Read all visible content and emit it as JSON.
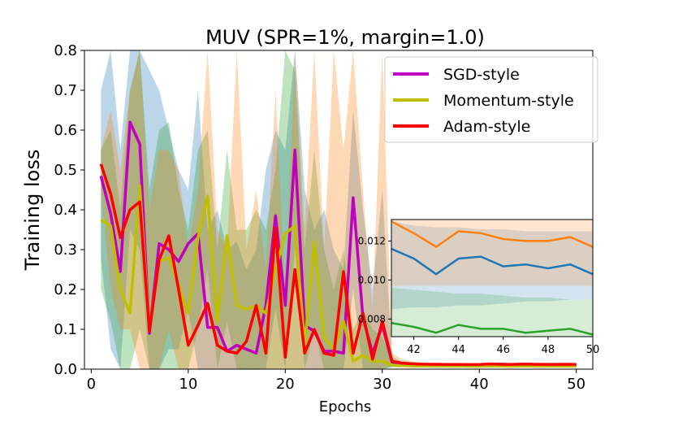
{
  "chart_data": {
    "type": "line",
    "title": "MUV (SPR=1%, margin=1.0)",
    "xlabel": "Epochs",
    "ylabel": "Training loss",
    "xlim": [
      -0.7,
      51.7
    ],
    "ylim": [
      0.0,
      0.8
    ],
    "xticks": [
      0,
      10,
      20,
      30,
      40,
      50
    ],
    "yticks": [
      0.0,
      0.1,
      0.2,
      0.3,
      0.4,
      0.5,
      0.6,
      0.7,
      0.8
    ],
    "legend_position": "top-right",
    "x": [
      1,
      2,
      3,
      4,
      5,
      6,
      7,
      8,
      9,
      10,
      11,
      12,
      13,
      14,
      15,
      16,
      17,
      18,
      19,
      20,
      21,
      22,
      23,
      24,
      25,
      26,
      27,
      28,
      29,
      30,
      31,
      32,
      33,
      34,
      35,
      36,
      37,
      38,
      39,
      40,
      41,
      42,
      43,
      44,
      45,
      46,
      47,
      48,
      49,
      50
    ],
    "series": [
      {
        "name": "SGD-style",
        "color": "#bf00bf",
        "band_color": "#1f77b4",
        "values": [
          0.485,
          0.39,
          0.245,
          0.62,
          0.565,
          0.09,
          0.315,
          0.3,
          0.27,
          0.315,
          0.34,
          0.105,
          0.105,
          0.045,
          0.06,
          0.05,
          0.04,
          0.16,
          0.385,
          0.16,
          0.55,
          0.11,
          0.095,
          0.045,
          0.045,
          0.04,
          0.43,
          0.13,
          0.04,
          0.11,
          0.018,
          0.013,
          0.012,
          0.0115,
          0.0108,
          0.0105,
          0.0104,
          0.0103,
          0.0102,
          0.0102,
          0.0116,
          0.0111,
          0.0103,
          0.0111,
          0.0112,
          0.0107,
          0.0108,
          0.0106,
          0.0108,
          0.0103
        ],
        "upper": [
          0.7,
          0.8,
          0.55,
          0.8,
          0.8,
          0.75,
          0.7,
          0.6,
          0.5,
          0.45,
          0.7,
          0.35,
          0.4,
          0.3,
          0.32,
          0.25,
          0.3,
          0.5,
          0.6,
          0.55,
          0.8,
          0.45,
          0.35,
          0.4,
          0.3,
          0.25,
          0.65,
          0.4,
          0.2,
          0.45,
          0.03,
          0.02,
          0.018,
          0.016,
          0.015,
          0.014,
          0.014,
          0.0135,
          0.0133,
          0.0132,
          0.013,
          0.0128,
          0.0127,
          0.0127,
          0.0126,
          0.0126,
          0.0125,
          0.0125,
          0.0125,
          0.0125
        ],
        "lower": [
          0.28,
          0.05,
          0.0,
          0.35,
          0.3,
          0.0,
          0.0,
          0.05,
          0.05,
          0.15,
          0.0,
          0.0,
          0.0,
          0.0,
          0.0,
          0.0,
          0.0,
          0.0,
          0.15,
          0.0,
          0.3,
          0.0,
          0.0,
          0.0,
          0.0,
          0.0,
          0.2,
          0.0,
          0.0,
          0.0,
          0.006,
          0.007,
          0.0072,
          0.0075,
          0.0076,
          0.0078,
          0.0079,
          0.008,
          0.008,
          0.008,
          0.0085,
          0.0086,
          0.0086,
          0.0087,
          0.0087,
          0.0088,
          0.0089,
          0.0089,
          0.009,
          0.009
        ]
      },
      {
        "name": "Momentum-style",
        "color": "#bfbf00",
        "band_color": "#2ca02c",
        "values": [
          0.375,
          0.36,
          0.2,
          0.14,
          0.46,
          0.1,
          0.27,
          0.28,
          0.21,
          0.14,
          0.33,
          0.435,
          0.12,
          0.335,
          0.16,
          0.15,
          0.16,
          0.14,
          0.25,
          0.34,
          0.36,
          0.06,
          0.32,
          0.08,
          0.05,
          0.12,
          0.02,
          0.035,
          0.02,
          0.02,
          0.01,
          0.009,
          0.008,
          0.0077,
          0.0078,
          0.0075,
          0.0073,
          0.0073,
          0.0072,
          0.0072,
          0.0078,
          0.0076,
          0.0073,
          0.0077,
          0.0075,
          0.0075,
          0.0073,
          0.0074,
          0.0075,
          0.0072
        ],
        "upper": [
          0.55,
          0.6,
          0.4,
          0.7,
          0.8,
          0.45,
          0.6,
          0.62,
          0.45,
          0.35,
          0.55,
          0.6,
          0.3,
          0.55,
          0.35,
          0.35,
          0.4,
          0.35,
          0.5,
          0.8,
          0.75,
          0.3,
          0.55,
          0.3,
          0.2,
          0.3,
          0.1,
          0.15,
          0.1,
          0.08,
          0.02,
          0.015,
          0.013,
          0.012,
          0.011,
          0.0105,
          0.0102,
          0.01,
          0.0098,
          0.0097,
          0.0096,
          0.0095,
          0.0094,
          0.0093,
          0.0093,
          0.0092,
          0.0091,
          0.0091,
          0.009,
          0.009
        ],
        "lower": [
          0.2,
          0.12,
          0.0,
          0.0,
          0.1,
          0.0,
          0.0,
          0.0,
          0.0,
          0.0,
          0.1,
          0.25,
          0.0,
          0.12,
          0.0,
          0.0,
          0.0,
          0.0,
          0.0,
          0.0,
          0.0,
          0.0,
          0.1,
          0.0,
          0.0,
          0.0,
          0.0,
          0.0,
          0.0,
          0.0,
          0.004,
          0.005,
          0.0055,
          0.0058,
          0.006,
          0.006,
          0.0061,
          0.0062,
          0.0062,
          0.0062,
          0.0063,
          0.0063,
          0.0063,
          0.0064,
          0.0064,
          0.0064,
          0.0064,
          0.0065,
          0.0065,
          0.0065
        ]
      },
      {
        "name": "Adam-style",
        "color": "#ff0000",
        "band_color": "#ff7f0e",
        "values": [
          0.515,
          0.44,
          0.33,
          0.4,
          0.42,
          0.095,
          0.275,
          0.335,
          0.2,
          0.06,
          0.11,
          0.165,
          0.06,
          0.045,
          0.04,
          0.07,
          0.16,
          0.04,
          0.355,
          0.03,
          0.25,
          0.04,
          0.1,
          0.04,
          0.035,
          0.245,
          0.04,
          0.14,
          0.025,
          0.12,
          0.02,
          0.015,
          0.0135,
          0.0125,
          0.0123,
          0.012,
          0.0118,
          0.0117,
          0.0115,
          0.0114,
          0.013,
          0.0124,
          0.0117,
          0.0125,
          0.0124,
          0.0121,
          0.012,
          0.012,
          0.0122,
          0.0117
        ],
        "upper": [
          0.55,
          0.65,
          0.5,
          0.7,
          0.8,
          0.4,
          0.55,
          0.55,
          0.5,
          0.3,
          0.45,
          0.8,
          0.35,
          0.3,
          0.8,
          0.3,
          0.45,
          0.25,
          0.7,
          0.2,
          0.8,
          0.35,
          0.8,
          0.3,
          0.8,
          0.55,
          0.8,
          0.45,
          0.15,
          0.8,
          0.04,
          0.025,
          0.02,
          0.018,
          0.016,
          0.015,
          0.015,
          0.0145,
          0.0143,
          0.0142,
          0.0142,
          0.014,
          0.014,
          0.014,
          0.014,
          0.014,
          0.014,
          0.014,
          0.014,
          0.014
        ],
        "lower": [
          0.45,
          0.2,
          0.1,
          0.1,
          0.0,
          0.0,
          0.0,
          0.1,
          0.0,
          0.0,
          0.0,
          0.0,
          0.0,
          0.0,
          0.0,
          0.0,
          0.0,
          0.0,
          0.0,
          0.0,
          0.0,
          0.0,
          0.0,
          0.0,
          0.0,
          0.0,
          0.0,
          0.0,
          0.0,
          0.0,
          0.008,
          0.009,
          0.0095,
          0.0095,
          0.0096,
          0.0096,
          0.0096,
          0.0096,
          0.0096,
          0.0096,
          0.0097,
          0.0097,
          0.0097,
          0.0097,
          0.0097,
          0.0097,
          0.0097,
          0.0097,
          0.0097,
          0.0097
        ]
      }
    ],
    "inset": {
      "xlim": [
        41,
        50
      ],
      "ylim": [
        0.0071,
        0.0131
      ],
      "xticks": [
        42,
        44,
        46,
        48,
        50
      ],
      "yticks": [
        0.008,
        0.01,
        0.012
      ],
      "ytick_labels": [
        "0.008",
        "0.010",
        "0.012"
      ],
      "series": [
        {
          "color": "#1f77b4",
          "values": [
            0.0116,
            0.0111,
            0.0103,
            0.0111,
            0.0112,
            0.0107,
            0.0108,
            0.0106,
            0.0108,
            0.0103
          ]
        },
        {
          "color": "#2ca02c",
          "values": [
            0.0078,
            0.0076,
            0.0073,
            0.0077,
            0.0075,
            0.0075,
            0.0073,
            0.0074,
            0.0075,
            0.0072
          ]
        },
        {
          "color": "#ff7f0e",
          "values": [
            0.013,
            0.0124,
            0.0117,
            0.0125,
            0.0124,
            0.0121,
            0.012,
            0.012,
            0.0122,
            0.0117
          ]
        }
      ]
    }
  }
}
